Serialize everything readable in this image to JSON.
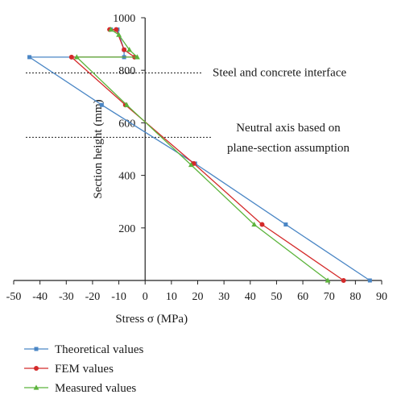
{
  "chart_data": {
    "type": "line",
    "xlabel": "Stress σ (MPa)",
    "ylabel": "Section height (mm)",
    "xlim": [
      -50,
      90
    ],
    "ylim": [
      0,
      1000
    ],
    "x_ticks": [
      -50,
      -40,
      -30,
      -20,
      -10,
      0,
      10,
      20,
      30,
      40,
      50,
      60,
      70,
      80,
      90
    ],
    "y_ticks": [
      200,
      400,
      600,
      800,
      1000
    ],
    "grid": false,
    "legend_position": "bottom-left",
    "series": [
      {
        "name": "Theoretical values",
        "color": "#4a86c5",
        "marker": "square",
        "points": [
          {
            "x": 85.5,
            "y": 0
          },
          {
            "x": 53.5,
            "y": 213
          },
          {
            "x": 19,
            "y": 445
          },
          {
            "x": -16.5,
            "y": 668
          },
          {
            "x": -44,
            "y": 850
          },
          {
            "x": -8,
            "y": 850
          },
          {
            "x": -8,
            "y": 878
          },
          {
            "x": -10.5,
            "y": 955
          },
          {
            "x": -13,
            "y": 955
          }
        ]
      },
      {
        "name": "FEM values",
        "color": "#d42a2a",
        "marker": "circle",
        "points": [
          {
            "x": 75.5,
            "y": 0
          },
          {
            "x": 44.5,
            "y": 213
          },
          {
            "x": 18.5,
            "y": 445
          },
          {
            "x": -7.5,
            "y": 668
          },
          {
            "x": -28,
            "y": 850
          },
          {
            "x": -4,
            "y": 850
          },
          {
            "x": -8,
            "y": 878
          },
          {
            "x": -11,
            "y": 955
          },
          {
            "x": -13.5,
            "y": 955
          }
        ]
      },
      {
        "name": "Measured values",
        "color": "#5cb43c",
        "marker": "triangle",
        "points": [
          {
            "x": 69.5,
            "y": 0
          },
          {
            "x": 41.5,
            "y": 213
          },
          {
            "x": 17.5,
            "y": 440
          },
          {
            "x": -7,
            "y": 668
          },
          {
            "x": -26,
            "y": 850
          },
          {
            "x": -3,
            "y": 850
          },
          {
            "x": -6,
            "y": 878
          },
          {
            "x": -10,
            "y": 935
          },
          {
            "x": -13,
            "y": 955
          }
        ]
      }
    ],
    "annotations": [
      {
        "text": "Steel and concrete interface",
        "y": 790
      },
      {
        "lines": [
          "Neutral axis based on",
          "plane-section assumption"
        ],
        "y": 545
      }
    ]
  }
}
